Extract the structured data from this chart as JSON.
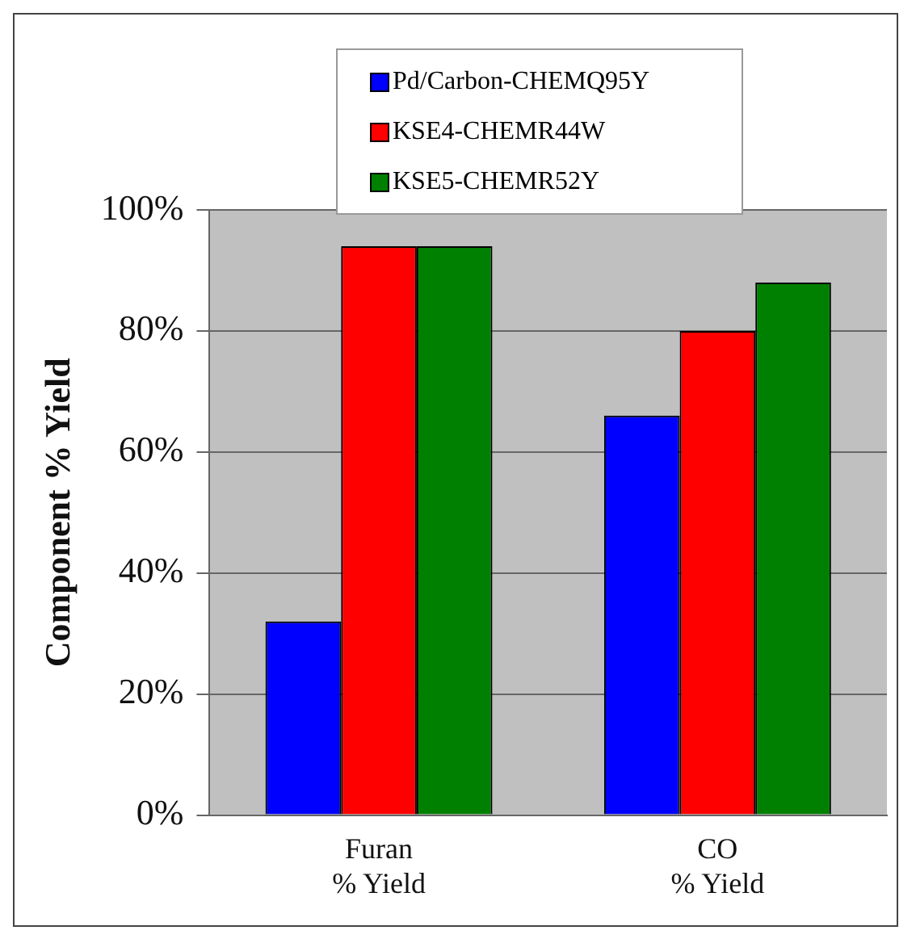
{
  "chart_data": {
    "type": "bar",
    "ylabel": "Component % Yield",
    "categories": [
      "Furan\n% Yield",
      "CO\n% Yield"
    ],
    "series": [
      {
        "name": "Pd/Carbon-CHEMQ95Y",
        "color": "#0000ff",
        "values": [
          32,
          66
        ]
      },
      {
        "name": "KSE4-CHEMR44W",
        "color": "#ff0000",
        "values": [
          94,
          80
        ]
      },
      {
        "name": "KSE5-CHEMR52Y",
        "color": "#008000",
        "values": [
          94,
          88
        ]
      }
    ],
    "ylim": [
      0,
      100
    ],
    "yticks": [
      {
        "value": 0,
        "label": "0%"
      },
      {
        "value": 20,
        "label": "20%"
      },
      {
        "value": 40,
        "label": "40%"
      },
      {
        "value": 60,
        "label": "60%"
      },
      {
        "value": 80,
        "label": "80%"
      },
      {
        "value": 100,
        "label": "100%"
      }
    ],
    "grid": "y",
    "legend": "top"
  }
}
